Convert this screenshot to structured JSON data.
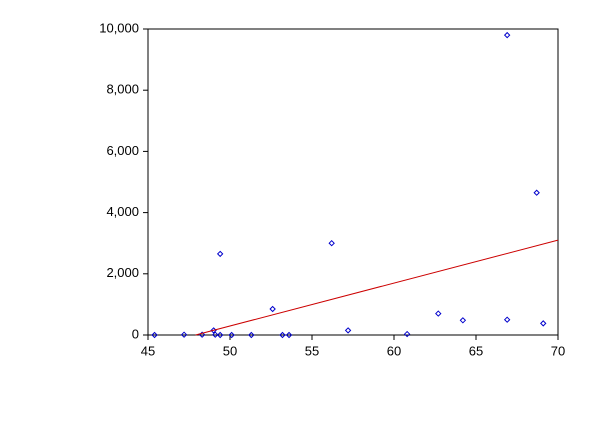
{
  "chart_data": {
    "type": "scatter",
    "xlim": [
      45,
      70
    ],
    "xticks": [
      45,
      50,
      55,
      60,
      65,
      70
    ],
    "ylim": [
      0,
      10000
    ],
    "yticks": [
      0,
      {
        "value": 2000,
        "label": "2,000"
      },
      {
        "value": 4000,
        "label": "4,000"
      },
      {
        "value": 6000,
        "label": "6,000"
      },
      {
        "value": 8000,
        "label": "8,000"
      },
      {
        "value": 10000,
        "label": "10,000"
      }
    ],
    "grid": false,
    "series": [
      {
        "type": "scatter",
        "color": "#0000cc",
        "x": [
          45.4,
          47.2,
          48.3,
          49.0,
          49.1,
          49.4,
          49.4,
          50.1,
          51.3,
          52.6,
          53.2,
          53.6,
          56.2,
          57.2,
          60.8,
          62.7,
          64.2,
          66.9,
          66.9,
          68.7,
          69.1
        ],
        "values": [
          0,
          10,
          10,
          150,
          10,
          2650,
          0,
          0,
          0,
          850,
          0,
          0,
          3000,
          150,
          30,
          700,
          480,
          9800,
          500,
          4650,
          380
        ]
      },
      {
        "type": "line",
        "color": "#cc0000",
        "x": [
          47.9,
          70
        ],
        "values": [
          0,
          3100
        ]
      }
    ]
  }
}
